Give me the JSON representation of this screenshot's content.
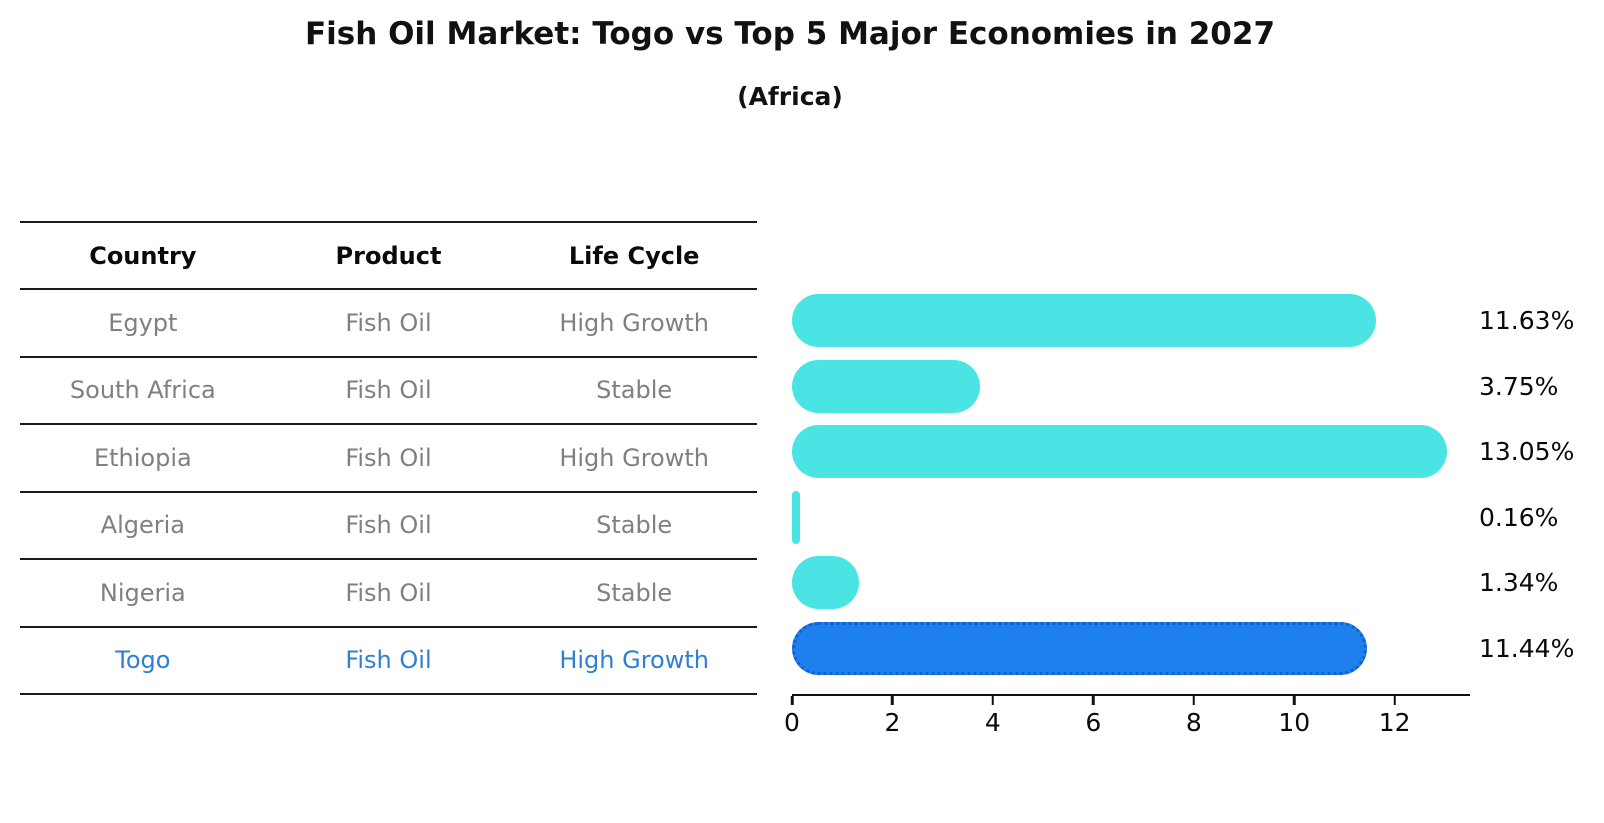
{
  "title": "Fish Oil Market: Togo vs Top 5 Major Economies in 2027",
  "subtitle": "(Africa)",
  "table": {
    "headers": [
      "Country",
      "Product",
      "Life Cycle"
    ],
    "rows": [
      {
        "country": "Egypt",
        "product": "Fish Oil",
        "life_cycle": "High Growth",
        "highlight": false
      },
      {
        "country": "South Africa",
        "product": "Fish Oil",
        "life_cycle": "Stable",
        "highlight": false
      },
      {
        "country": "Ethiopia",
        "product": "Fish Oil",
        "life_cycle": "High Growth",
        "highlight": false
      },
      {
        "country": "Algeria",
        "product": "Fish Oil",
        "life_cycle": "Stable",
        "highlight": false
      },
      {
        "country": "Nigeria",
        "product": "Fish Oil",
        "life_cycle": "Stable",
        "highlight": false
      },
      {
        "country": "Togo",
        "product": "Fish Oil",
        "life_cycle": "High Growth",
        "highlight": true
      }
    ]
  },
  "chart_data": {
    "type": "bar",
    "orientation": "horizontal",
    "title": "Fish Oil Market: Togo vs Top 5 Major Economies in 2027",
    "subtitle": "(Africa)",
    "categories": [
      "Egypt",
      "South Africa",
      "Ethiopia",
      "Algeria",
      "Nigeria",
      "Togo"
    ],
    "values": [
      11.63,
      3.75,
      13.05,
      0.16,
      1.34,
      11.44
    ],
    "value_labels": [
      "11.63%",
      "3.75%",
      "13.05%",
      "0.16%",
      "1.34%",
      "11.44%"
    ],
    "unit": "percent",
    "x_ticks": [
      0,
      2,
      4,
      6,
      8,
      10,
      12
    ],
    "xlim": [
      0,
      13.5
    ],
    "grid": false,
    "legend": false,
    "highlight_category": "Togo"
  },
  "colors": {
    "bar": "#4be4e4",
    "highlight_bar": "#1e80ec",
    "highlight_bar_edge": "#1260cf",
    "highlight_text": "#2f7fd4",
    "row_text": "#808080",
    "axis": "#111111",
    "text": "#0a0a0a"
  }
}
